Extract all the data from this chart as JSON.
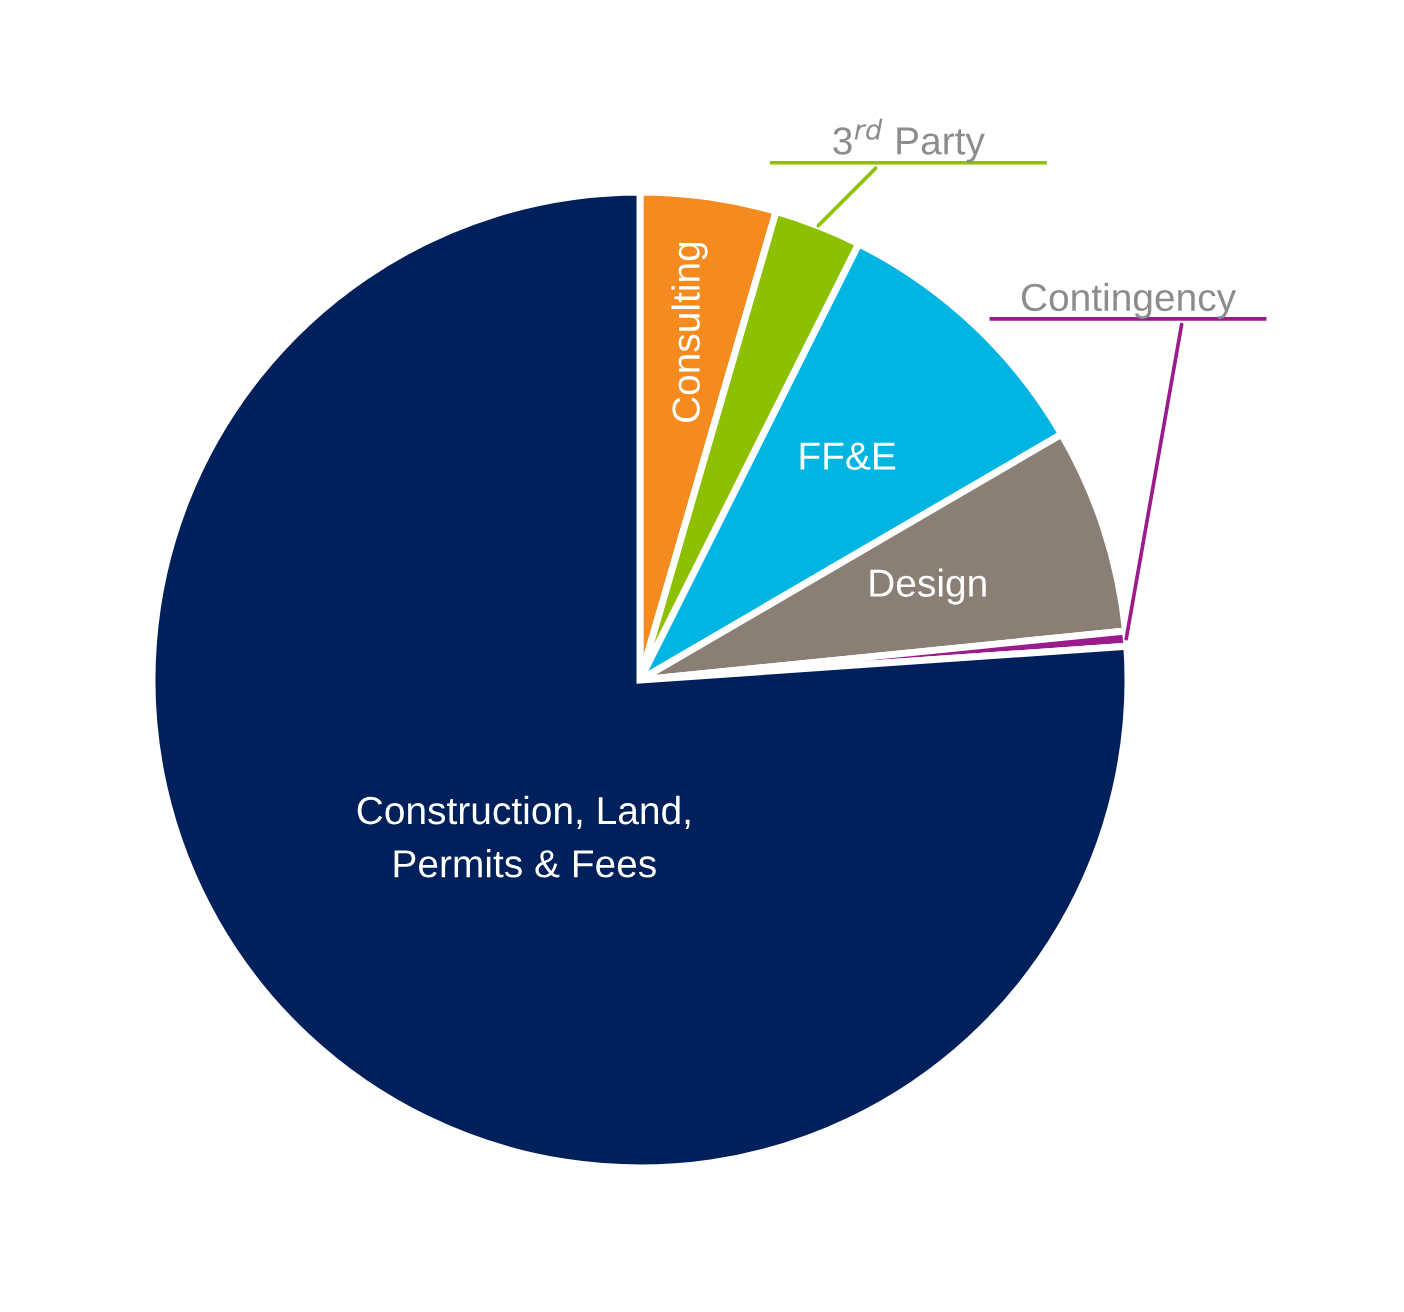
{
  "chart_data": {
    "type": "pie",
    "categories": [
      "Consulting",
      "3$^{rd}$ Party",
      "FF&E",
      "Design",
      "Contingency",
      "Construction, Land,\nPermits & Fees"
    ],
    "values": [
      4.5,
      2.9,
      9.2,
      6.8,
      0.5,
      76.1
    ],
    "colors": [
      "#f58b1f",
      "#8cc000",
      "#00b5e2",
      "#8a7f75",
      "#9b1a8c",
      "#00205b"
    ],
    "legend": false
  }
}
